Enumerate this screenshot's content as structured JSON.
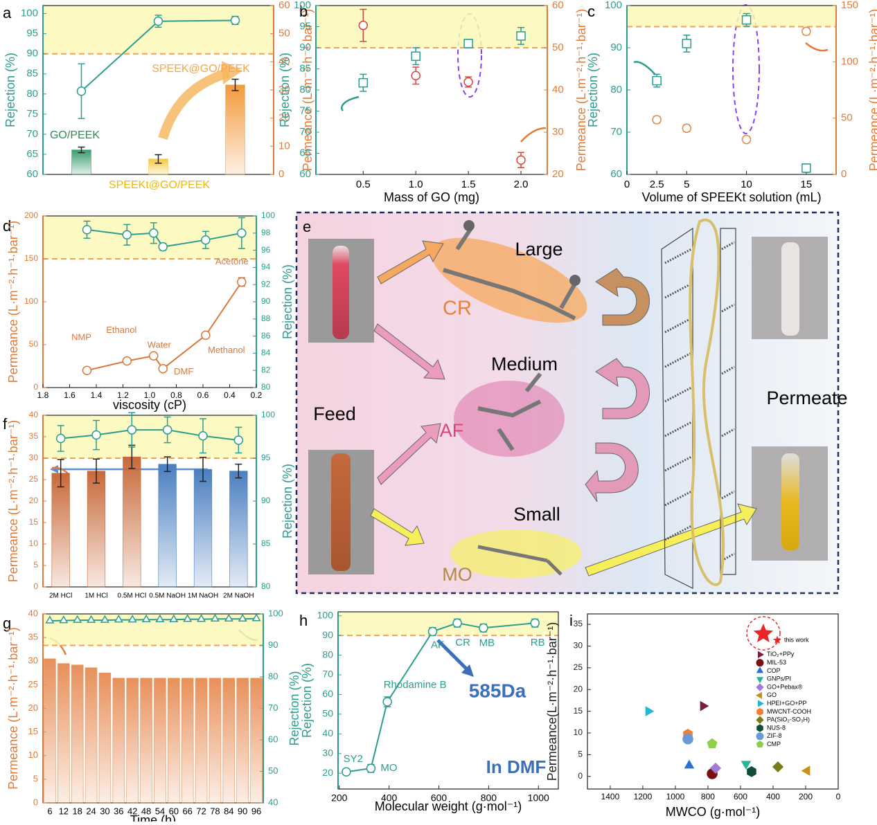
{
  "chart_data": [
    {
      "panel": "a",
      "type": "combo",
      "categories": [
        "GO/PEEK",
        "SPEEKt@GO/PEEK",
        "SPEEK@GO/PEEK"
      ],
      "ylabel": "Rejection (%)",
      "y2label": "Permeance (L·m⁻²·h⁻¹·bar⁻¹)",
      "ycolor": "#2a9d8f",
      "y2color": "#e07b39",
      "ylim": [
        60,
        102
      ],
      "yticks": [
        60,
        65,
        70,
        75,
        80,
        85,
        90,
        95,
        100
      ],
      "y2lim": [
        0,
        60
      ],
      "y2ticks": [
        0,
        10,
        20,
        30,
        40,
        50,
        60
      ],
      "threshold": {
        "value": 90,
        "axis": "y"
      },
      "series": [
        {
          "type": "bar",
          "axis": "y2",
          "colors": [
            "#3a9e6e",
            "#f5c842",
            "#f39a3c"
          ],
          "values": [
            8.7,
            5.5,
            31.8
          ],
          "errors": [
            1,
            1.5,
            2
          ]
        },
        {
          "type": "line",
          "axis": "y",
          "color": "#2a9d8f",
          "marker": "circle",
          "values": [
            80.7,
            98.1,
            98.3
          ],
          "errors": [
            6.8,
            1.5,
            1
          ]
        }
      ]
    },
    {
      "panel": "b",
      "type": "combo",
      "x": [
        0.5,
        1,
        1.5,
        2
      ],
      "xlabel": "Mass of GO (mg)",
      "ylabel": "Rejection (%)",
      "y2label": "Permeance (L·m⁻²·h⁻¹·bar⁻¹)",
      "ycolor": "#2a9d8f",
      "y2color": "#e07b39",
      "xlim": [
        0.05,
        2.25
      ],
      "xticks": [
        0.5,
        {
          "value": 1,
          "label": "1.0"
        },
        1.5,
        {
          "value": 2,
          "label": "2.0"
        }
      ],
      "ylim": [
        60,
        100
      ],
      "yticks": [
        60,
        65,
        70,
        75,
        80,
        85,
        90,
        95,
        100
      ],
      "y2lim": [
        20,
        60
      ],
      "y2ticks": [
        20,
        30,
        40,
        50,
        60
      ],
      "threshold": {
        "value": 90,
        "axis": "y"
      },
      "series": [
        {
          "type": "scatter",
          "axis": "y",
          "color": "#2a9d8f",
          "marker": "square",
          "values": [
            81.7,
            88,
            91,
            92.8
          ],
          "errors": [
            2,
            2,
            1,
            2
          ]
        },
        {
          "type": "scatter",
          "axis": "y2",
          "color": "#d6453d",
          "marker": "circle",
          "values": [
            55.3,
            43.4,
            41.9,
            23.4
          ],
          "errors": [
            3.8,
            2,
            1.2,
            1.8
          ]
        }
      ]
    },
    {
      "panel": "c",
      "type": "combo",
      "x": [
        2.5,
        5,
        10,
        15
      ],
      "xlabel": "Volume of SPEEKt solution (mL)",
      "ylabel": "Rejection (%)",
      "y2label": "Permeance (L·m⁻²·h⁻¹·bar⁻¹)",
      "ycolor": "#2a9d8f",
      "y2color": "#e07b39",
      "xlim": [
        0,
        17.5
      ],
      "xticks": [
        0,
        2.5,
        5,
        10,
        15
      ],
      "ylim": [
        60,
        100
      ],
      "yticks": [
        60,
        70,
        80,
        90,
        100
      ],
      "y2lim": [
        0,
        150
      ],
      "y2ticks": [
        0,
        50,
        100,
        150
      ],
      "threshold": {
        "value": 95,
        "axis": "y"
      },
      "series": [
        {
          "type": "scatter",
          "axis": "y",
          "color": "#2a9d8f",
          "marker": "square",
          "values": [
            82.2,
            91,
            96.6,
            61.5
          ],
          "errors": [
            1.5,
            2,
            1.5,
            1
          ]
        },
        {
          "type": "scatter",
          "axis": "y2",
          "color": "#e08a4a",
          "marker": "circle",
          "values": [
            48.6,
            41,
            31,
            127
          ],
          "errors": [
            3,
            3,
            2.5,
            3
          ]
        }
      ]
    },
    {
      "panel": "d",
      "type": "combo",
      "x": [
        1.47,
        1.17,
        0.97,
        0.9,
        0.58,
        0.31
      ],
      "xlabel": "viscosity (cP)",
      "ylabel": "Permeance (L·m⁻²·h⁻¹·bar⁻¹)",
      "y2label": "Rejection (%)",
      "ycolor": "#e07b39",
      "y2color": "#2a9d8f",
      "xlim": [
        1.8,
        0.2
      ],
      "xticks": [
        1.8,
        1.6,
        1.4,
        1.2,
        {
          "value": 1,
          "label": "1.0"
        },
        0.8,
        0.6,
        0.4,
        0.2
      ],
      "ylim": [
        0,
        200
      ],
      "yticks": [
        0,
        50,
        100,
        150,
        200
      ],
      "y2lim": [
        80,
        100
      ],
      "y2ticks": [
        80,
        82,
        84,
        86,
        88,
        90,
        92,
        94,
        96,
        98,
        100
      ],
      "threshold": {
        "value": 150,
        "axis": "y"
      },
      "series": [
        {
          "type": "line",
          "axis": "y",
          "color": "#d9773a",
          "marker": "circle",
          "values": [
            20,
            31,
            37,
            22,
            61,
            123
          ],
          "errors": [
            2,
            2,
            3,
            2,
            3,
            5
          ],
          "labels": [
            "NMP",
            "Ethanol",
            "Water",
            "DMF",
            "Methanol",
            "Acetone"
          ]
        },
        {
          "type": "line",
          "axis": "y2",
          "color": "#2a9d8f",
          "marker": "circle",
          "values": [
            98.4,
            97.8,
            98,
            96.4,
            97.2,
            98
          ],
          "errors": [
            1,
            1.2,
            1.2,
            0.4,
            1,
            1.8
          ]
        }
      ]
    },
    {
      "panel": "f",
      "type": "combo",
      "categories": [
        "2M HCl",
        "1M HCl",
        "0.5M HCl",
        "0.5M NaOH",
        "1M NaOH",
        "2M NaOH"
      ],
      "ylabel": "Permeance (L·m⁻²·h⁻¹·bar⁻¹)",
      "y2label": "Rejection (%)",
      "ycolor": "#e07b39",
      "y2color": "#2a9d8f",
      "ylim": [
        0,
        40
      ],
      "yticks": [
        0,
        5,
        10,
        15,
        20,
        25,
        30,
        35,
        40
      ],
      "y2lim": [
        80,
        100
      ],
      "y2ticks": [
        80,
        85,
        90,
        95,
        100
      ],
      "threshold": {
        "value": 95,
        "axis": "y2"
      },
      "series": [
        {
          "type": "bar",
          "axis": "y",
          "colors": [
            "#c8693a",
            "#c8693a",
            "#c8693a",
            "#4a7fc0",
            "#4a7fc0",
            "#4a7fc0"
          ],
          "values": [
            26.5,
            27,
            30.3,
            28.6,
            27.4,
            27
          ],
          "errors": [
            3.2,
            2.8,
            2.7,
            1.7,
            2.8,
            1.6
          ]
        },
        {
          "type": "line",
          "axis": "y2",
          "color": "#2a9d8f",
          "marker": "circle",
          "values": [
            97.3,
            97.7,
            98.3,
            98.3,
            97.6,
            97.1
          ],
          "errors": [
            1.5,
            1.7,
            2,
            1.5,
            2,
            1.5
          ]
        }
      ]
    },
    {
      "panel": "g",
      "type": "combo",
      "categories": [
        "6",
        "12",
        "18",
        "24",
        "30",
        "36",
        "42",
        "48",
        "54",
        "60",
        "66",
        "72",
        "78",
        "84",
        "90",
        "96"
      ],
      "xlabel": "Time (h)",
      "ylabel": "Permeance (L·m⁻²·h⁻¹·bar⁻¹)",
      "y2label": "Rejection (%)",
      "ycolor": "#e07b39",
      "y2color": "#2a9d8f",
      "ylim": [
        0,
        40
      ],
      "yticks": [
        0,
        5,
        10,
        15,
        20,
        25,
        30,
        35,
        40
      ],
      "y2lim": [
        40,
        100
      ],
      "y2ticks": [
        40,
        50,
        60,
        70,
        80,
        90,
        100
      ],
      "threshold": {
        "value": 90,
        "axis": "y2"
      },
      "series": [
        {
          "type": "bar",
          "axis": "y",
          "color": "#e8905a",
          "values": [
            30.5,
            29.5,
            29.2,
            28.6,
            27.5,
            26.4,
            26.4,
            26.4,
            26.4,
            26.4,
            26.4,
            26.4,
            26.4,
            26.4,
            26.4,
            26.4
          ]
        },
        {
          "type": "line",
          "axis": "y2",
          "color": "#2a9d8f",
          "marker": "triangle",
          "values": [
            97.8,
            97.9,
            98,
            98,
            98,
            98.1,
            98.1,
            98.2,
            98.2,
            98.2,
            98.3,
            98.3,
            98.4,
            98.4,
            98.4,
            98.5
          ]
        }
      ]
    },
    {
      "panel": "h",
      "type": "combo",
      "x": [
        228,
        327,
        393,
        575,
        674,
        779,
        986
      ],
      "xlabel": "Molecular weight (g·mol⁻¹)",
      "ylabel": "Rejection (%)",
      "ycolor": "#2a9d8f",
      "xlim": [
        195,
        1080
      ],
      "xticks": [
        200,
        400,
        600,
        800,
        1000
      ],
      "ylim": [
        12,
        102
      ],
      "yticks": [
        20,
        30,
        40,
        50,
        60,
        70,
        80,
        90,
        100
      ],
      "threshold": {
        "value": 90,
        "axis": "y"
      },
      "annotations": [
        "585Da",
        "In DMF"
      ],
      "series": [
        {
          "type": "line",
          "axis": "y",
          "color": "#2a9d8f",
          "marker": "circle",
          "values": [
            20.7,
            22.5,
            56.3,
            92,
            96.3,
            93.8,
            96.3
          ],
          "errors": [
            1.5,
            2,
            2.5,
            2,
            2,
            2,
            2
          ],
          "labels": [
            "SY2",
            "MO",
            "Rhodamine B",
            "AF",
            "CR",
            "MB",
            "RB"
          ]
        }
      ]
    },
    {
      "panel": "i",
      "type": "scatter",
      "xlabel": "MWCO (g·mol⁻¹)",
      "ylabel": "Permeance(L·m⁻²·h⁻¹·bar⁻¹)",
      "xlim": [
        1540,
        0
      ],
      "xticks": [
        1400,
        1200,
        1000,
        800,
        600,
        400,
        200,
        0
      ],
      "ylim": [
        -2.9,
        37.4
      ],
      "yticks": [
        0,
        5,
        10,
        15,
        20,
        25,
        30,
        35
      ],
      "legend": "upper right",
      "series": [
        {
          "name": "this work",
          "color": "#e8262a",
          "marker": "star",
          "x": [
            460
          ],
          "values": [
            32.8
          ]
        },
        {
          "name": "TiO₂+PPy",
          "color": "#7b1e3a",
          "marker": "tri-right",
          "x": [
            830
          ],
          "values": [
            16.2
          ]
        },
        {
          "name": "MIL-53",
          "color": "#7a1010",
          "marker": "circle",
          "x": [
            774
          ],
          "values": [
            0.6
          ]
        },
        {
          "name": "COP",
          "color": "#2b6fd6",
          "marker": "triangle",
          "x": [
            915
          ],
          "values": [
            2.5
          ]
        },
        {
          "name": "GNPs/PI",
          "color": "#2bb39a",
          "marker": "tri-down",
          "x": [
            566
          ],
          "values": [
            2.9
          ]
        },
        {
          "name": "GO+Pebax®",
          "color": "#a07ad6",
          "marker": "diamond",
          "x": [
            753
          ],
          "values": [
            1.9
          ]
        },
        {
          "name": "GO",
          "color": "#c8901a",
          "marker": "tri-left",
          "x": [
            191
          ],
          "values": [
            1.3
          ]
        },
        {
          "name": "HPEI+GO+PP",
          "color": "#22b8d4",
          "marker": "tri-right",
          "x": [
            1166
          ],
          "values": [
            15
          ]
        },
        {
          "name": "MWCNT-COOH",
          "color": "#f08030",
          "marker": "hexagon",
          "x": [
            923
          ],
          "values": [
            9.7
          ]
        },
        {
          "name": "PA(SiO₂-SO₃H)",
          "color": "#7a7a18",
          "marker": "diamond",
          "x": [
            370
          ],
          "values": [
            2.2
          ]
        },
        {
          "name": "NUS-8",
          "color": "#114d3a",
          "marker": "hexagon",
          "x": [
            532
          ],
          "values": [
            1.1
          ]
        },
        {
          "name": "ZIF-8",
          "color": "#6a9ad6",
          "marker": "circle",
          "x": [
            923
          ],
          "values": [
            8.6
          ]
        },
        {
          "name": "CMP",
          "color": "#8ed04a",
          "marker": "pentagon",
          "x": [
            774
          ],
          "values": [
            7.5
          ]
        }
      ]
    }
  ],
  "diagram": {
    "panel": "e",
    "feed": "Feed",
    "permeate": "Permeate",
    "molecules": [
      {
        "size": "Large",
        "name": "CR"
      },
      {
        "size": "Medium",
        "name": "AF"
      },
      {
        "size": "Small",
        "name": "MO"
      }
    ]
  }
}
